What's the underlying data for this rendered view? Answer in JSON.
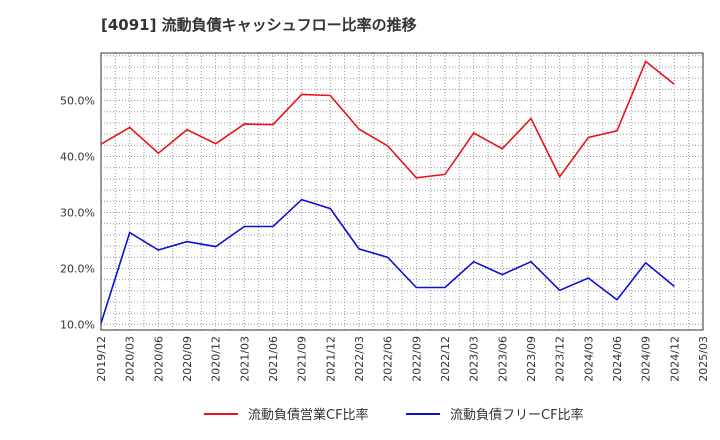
{
  "title": "[4091]  流動負債キャッシュフロー比率の推移",
  "chart_data": {
    "type": "line",
    "x": [
      "2019/12",
      "2020/03",
      "2020/06",
      "2020/09",
      "2020/12",
      "2021/03",
      "2021/06",
      "2021/09",
      "2021/12",
      "2022/03",
      "2022/06",
      "2022/09",
      "2022/12",
      "2023/03",
      "2023/06",
      "2023/09",
      "2023/12",
      "2024/03",
      "2024/06",
      "2024/09",
      "2024/12"
    ],
    "x_ticks": [
      "2019/12",
      "2020/03",
      "2020/06",
      "2020/09",
      "2020/12",
      "2021/03",
      "2021/06",
      "2021/09",
      "2021/12",
      "2022/03",
      "2022/06",
      "2022/09",
      "2022/12",
      "2023/03",
      "2023/06",
      "2023/09",
      "2023/12",
      "2024/03",
      "2024/06",
      "2024/09",
      "2024/12",
      "2025/03"
    ],
    "y_ticks": [
      "10.0%",
      "20.0%",
      "30.0%",
      "40.0%",
      "50.0%"
    ],
    "ylim": [
      9.0,
      58.5
    ],
    "grid": true,
    "legend_position": "bottom",
    "series": [
      {
        "name": "流動負債営業CF比率",
        "color": "#e8141c",
        "values": [
          42.2,
          45.2,
          40.6,
          44.8,
          42.3,
          45.8,
          45.7,
          51.1,
          50.9,
          44.9,
          41.9,
          36.2,
          36.8,
          44.2,
          41.4,
          46.8,
          36.4,
          43.4,
          44.6,
          57.0,
          52.9
        ]
      },
      {
        "name": "流動負債フリーCF比率",
        "color": "#1010d0",
        "values": [
          10.2,
          26.4,
          23.3,
          24.8,
          23.9,
          27.5,
          27.5,
          32.3,
          30.7,
          23.5,
          22.0,
          16.6,
          16.6,
          21.2,
          18.9,
          21.2,
          16.1,
          18.3,
          14.4,
          21.0,
          16.8
        ]
      }
    ]
  }
}
